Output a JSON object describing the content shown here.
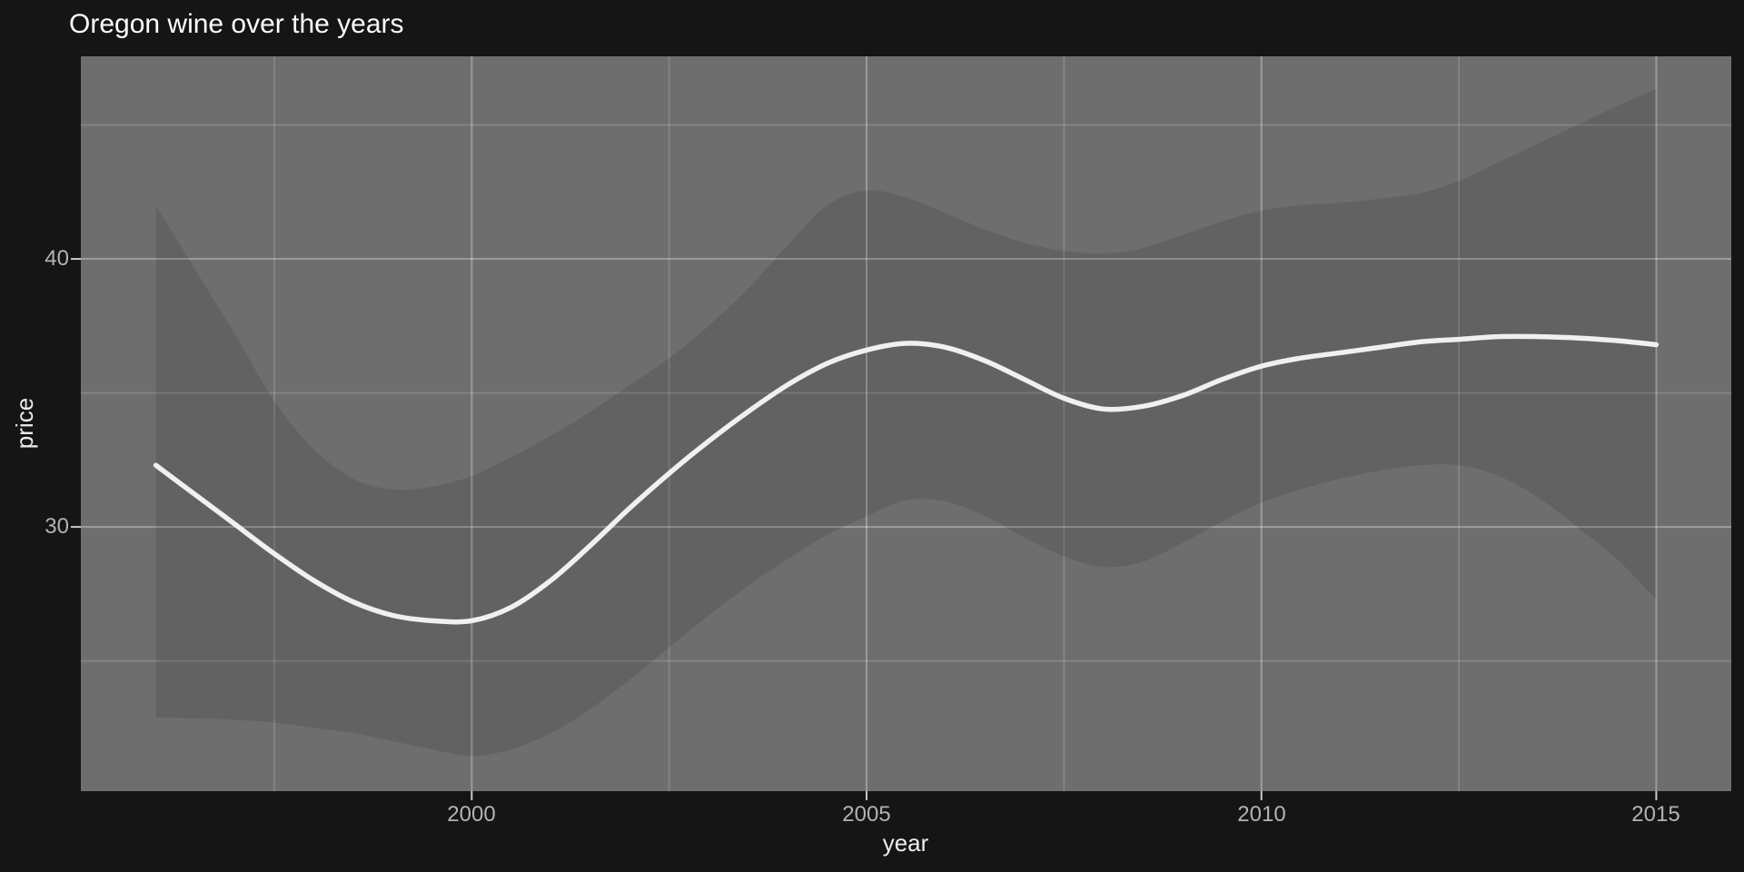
{
  "title": "Oregon wine over the years",
  "axes": {
    "x_tick_labels": [
      "2000",
      "2005",
      "2010",
      "2015"
    ],
    "y_tick_labels": [
      "40",
      "30"
    ],
    "xlabel": "year",
    "ylabel": "price"
  },
  "chart_data": {
    "type": "line",
    "title": "Oregon wine over the years",
    "xlabel": "year",
    "ylabel": "price",
    "legend": "none",
    "grid": "major+minor",
    "xlim": [
      1995.05,
      2015.95
    ],
    "ylim": [
      20.14,
      47.56
    ],
    "x_ticks": [
      2000,
      2005,
      2010,
      2015
    ],
    "x_minor_ticks": [
      1997.5,
      2002.5,
      2007.5,
      2012.5
    ],
    "y_ticks": [
      40,
      30
    ],
    "y_minor_ticks": [
      25,
      35,
      45
    ],
    "x": [
      1996,
      1996.5,
      1997,
      1997.5,
      1998,
      1998.5,
      1999,
      1999.5,
      2000,
      2000.5,
      2001,
      2001.5,
      2002,
      2002.5,
      2003,
      2003.5,
      2004,
      2004.5,
      2005,
      2005.5,
      2006,
      2006.5,
      2007,
      2007.5,
      2008,
      2008.5,
      2009,
      2009.5,
      2010,
      2010.5,
      2011,
      2011.5,
      2012,
      2012.5,
      2013,
      2013.5,
      2014,
      2014.5,
      2015
    ],
    "series": [
      {
        "name": "smoothed-price",
        "role": "line",
        "values": [
          32.3,
          31.2,
          30.1,
          29.0,
          28.0,
          27.2,
          26.7,
          26.5,
          26.5,
          27.0,
          28.0,
          29.3,
          30.7,
          32.0,
          33.2,
          34.3,
          35.3,
          36.1,
          36.6,
          36.85,
          36.7,
          36.2,
          35.5,
          34.8,
          34.4,
          34.5,
          34.9,
          35.5,
          36.0,
          36.3,
          36.5,
          36.7,
          36.9,
          37.0,
          37.1,
          37.1,
          37.05,
          36.95,
          36.8
        ]
      },
      {
        "name": "ci-upper",
        "role": "ribbon-upper",
        "values": [
          42.0,
          39.6,
          37.2,
          34.7,
          32.9,
          31.8,
          31.4,
          31.5,
          31.9,
          32.6,
          33.4,
          34.3,
          35.3,
          36.3,
          37.5,
          38.9,
          40.5,
          42.0,
          42.55,
          42.3,
          41.7,
          41.1,
          40.6,
          40.3,
          40.2,
          40.4,
          40.9,
          41.4,
          41.8,
          42.0,
          42.1,
          42.25,
          42.45,
          42.9,
          43.6,
          44.3,
          45.0,
          45.7,
          46.35
        ]
      },
      {
        "name": "ci-lower",
        "role": "ribbon-lower",
        "values": [
          22.9,
          22.85,
          22.8,
          22.7,
          22.5,
          22.3,
          22.0,
          21.7,
          21.45,
          21.7,
          22.3,
          23.2,
          24.3,
          25.5,
          26.7,
          27.8,
          28.8,
          29.7,
          30.4,
          31.0,
          30.95,
          30.4,
          29.6,
          28.9,
          28.5,
          28.7,
          29.4,
          30.2,
          30.9,
          31.4,
          31.8,
          32.1,
          32.3,
          32.3,
          31.9,
          31.1,
          30.0,
          28.8,
          27.3
        ]
      }
    ],
    "colors": {
      "background": "#151515",
      "panel": "#6e6e6e",
      "ribbon": "rgba(0,0,0,0.10)",
      "line": "#f0f0f0",
      "grid_major": "rgba(255,255,255,0.32)",
      "grid_minor": "rgba(255,255,255,0.15)",
      "tick": "#c9c9c9",
      "tick_label": "#b3b3b3",
      "axis_title": "#ededed",
      "title": "#fcfcfc"
    }
  }
}
